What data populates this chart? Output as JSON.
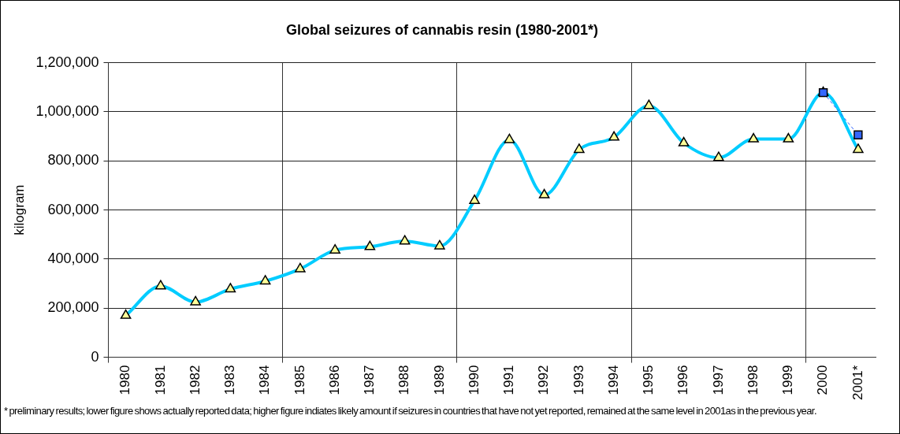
{
  "chart_data": {
    "type": "line",
    "title": "Global seizures of cannabis resin (1980-2001*)",
    "ylabel": "kilogram",
    "categories": [
      "1980",
      "1981",
      "1982",
      "1983",
      "1984",
      "1985",
      "1986",
      "1987",
      "1988",
      "1989",
      "1990",
      "1991",
      "1992",
      "1993",
      "1994",
      "1995",
      "1996",
      "1997",
      "1998",
      "1999",
      "2000",
      "2001*"
    ],
    "series": [
      {
        "color": "#00ccff",
        "marker": "triangle",
        "line_style": "solid",
        "values": [
          170000,
          290000,
          225000,
          278000,
          310000,
          360000,
          436000,
          450000,
          473000,
          453000,
          638000,
          886000,
          661000,
          846000,
          896000,
          1025000,
          873000,
          813000,
          889000,
          889000,
          1078000,
          846000
        ]
      },
      {
        "color": "#3366ff",
        "marker": "square",
        "line_style": "dashed",
        "values": [
          null,
          null,
          null,
          null,
          null,
          null,
          null,
          null,
          null,
          null,
          null,
          null,
          null,
          null,
          null,
          null,
          null,
          null,
          null,
          null,
          1078000,
          906000
        ]
      }
    ],
    "ylim": [
      0,
      1200000
    ],
    "yticks": [
      0,
      {
        "value": 200000,
        "label": "200,000"
      },
      {
        "value": 400000,
        "label": "400,000"
      },
      {
        "value": 600000,
        "label": "600,000"
      },
      {
        "value": 800000,
        "label": "800,000"
      },
      {
        "value": 1000000,
        "label": "1,000,000"
      },
      {
        "value": 1200000,
        "label": "1,200,000"
      }
    ],
    "grid": true,
    "legend": false,
    "annotations": [
      "* preliminary results;  lower figure shows actually reported data; higher figure indiates likely amount if seizures  in countries that have not yet reported, remained at the same level in 2001as in the previous year."
    ]
  }
}
